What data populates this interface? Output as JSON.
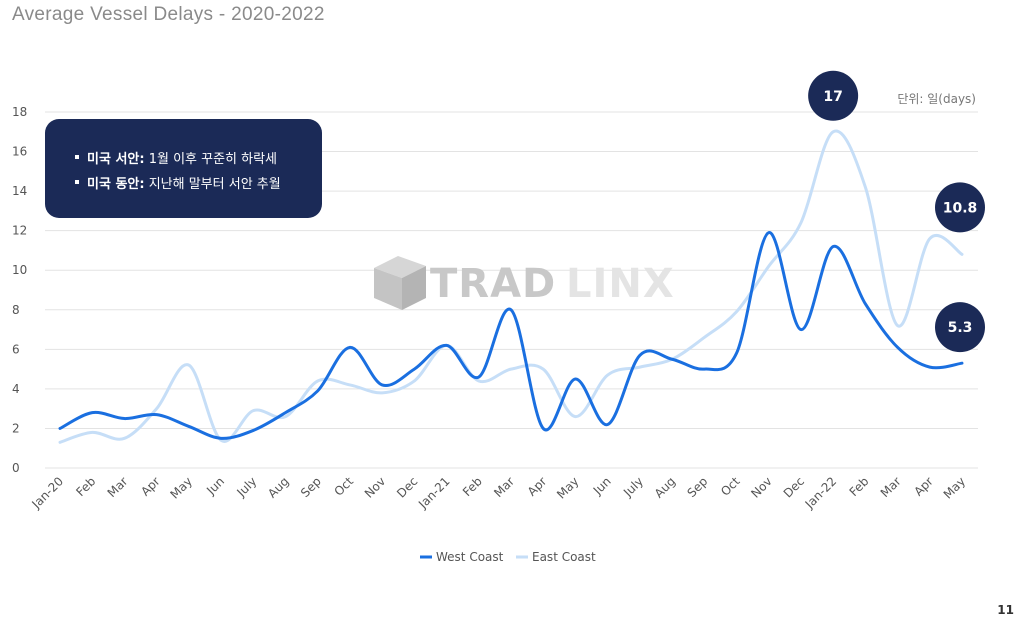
{
  "page": {
    "title": "Average Vessel Delays - 2020-2022",
    "page_number": "11"
  },
  "note": {
    "items": [
      {
        "bold": "미국 서안:",
        "text": " 1월 이후 꾸준히 하락세"
      },
      {
        "bold": "미국 동안:",
        "text": " 지난해 말부터 서안 추월"
      }
    ]
  },
  "watermark": {
    "text_dark": "TRAD",
    "text_light": "LINX"
  },
  "unit_label": "단위: 일(days)",
  "colors": {
    "west": "#1a6fe0",
    "east": "#c6def7",
    "navy": "#1b2a57",
    "grid": "#e3e3e3",
    "axis_text": "#555555"
  },
  "chart_data": {
    "type": "line",
    "categories": [
      "Jan-20",
      "Feb",
      "Mar",
      "Apr",
      "May",
      "Jun",
      "July",
      "Aug",
      "Sep",
      "Oct",
      "Nov",
      "Dec",
      "Jan-21",
      "Feb",
      "Mar",
      "Apr",
      "May",
      "Jun",
      "July",
      "Aug",
      "Sep",
      "Oct",
      "Nov",
      "Dec",
      "Jan-22",
      "Feb",
      "Mar",
      "Apr",
      "May"
    ],
    "series": [
      {
        "name": "West Coast",
        "values": [
          2.0,
          2.8,
          2.5,
          2.7,
          2.1,
          1.5,
          1.9,
          2.8,
          3.9,
          6.1,
          4.2,
          5.0,
          6.2,
          4.6,
          8.0,
          2.0,
          4.5,
          2.2,
          5.7,
          5.5,
          5.0,
          5.8,
          11.9,
          7.0,
          11.2,
          8.3,
          6.1,
          5.1,
          5.3
        ]
      },
      {
        "name": "East Coast",
        "values": [
          1.3,
          1.8,
          1.5,
          3.0,
          5.2,
          1.4,
          2.9,
          2.6,
          4.4,
          4.2,
          3.8,
          4.4,
          6.2,
          4.4,
          5.0,
          5.0,
          2.6,
          4.7,
          5.1,
          5.5,
          6.6,
          7.9,
          10.2,
          12.4,
          17.0,
          14.2,
          7.2,
          11.6,
          10.8
        ]
      }
    ],
    "ylim": [
      0,
      18
    ],
    "yticks": [
      0,
      2,
      4,
      6,
      8,
      10,
      12,
      14,
      16,
      18
    ],
    "grid": true,
    "legend_position": "bottom-center",
    "callouts": [
      {
        "label": "17",
        "series": "East Coast",
        "category_index": 24
      },
      {
        "label": "10.8",
        "series": "East Coast",
        "category_index": 28
      },
      {
        "label": "5.3",
        "series": "West Coast",
        "category_index": 28
      }
    ]
  }
}
